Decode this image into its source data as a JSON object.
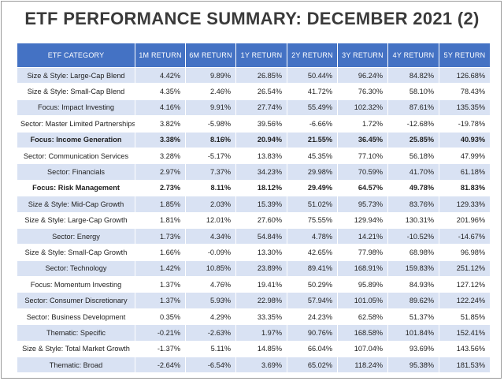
{
  "title": "ETF PERFORMANCE SUMMARY: DECEMBER 2021 (2)",
  "columns": [
    "ETF CATEGORY",
    "1M RETURN",
    "6M RETURN",
    "1Y RETURN",
    "2Y RETURN",
    "3Y RETURN",
    "4Y RETURN",
    "5Y RETURN"
  ],
  "rows": [
    {
      "category": "Size & Style: Large-Cap Blend",
      "values": [
        "4.42%",
        "9.89%",
        "26.85%",
        "50.44%",
        "96.24%",
        "84.82%",
        "126.68%"
      ],
      "bold": false
    },
    {
      "category": "Size & Style: Small-Cap Blend",
      "values": [
        "4.35%",
        "2.46%",
        "26.54%",
        "41.72%",
        "76.30%",
        "58.10%",
        "78.43%"
      ],
      "bold": false
    },
    {
      "category": "Focus: Impact Investing",
      "values": [
        "4.16%",
        "9.91%",
        "27.74%",
        "55.49%",
        "102.32%",
        "87.61%",
        "135.35%"
      ],
      "bold": false
    },
    {
      "category": "Sector: Master Limited Partnerships",
      "values": [
        "3.82%",
        "-5.98%",
        "39.56%",
        "-6.66%",
        "1.72%",
        "-12.68%",
        "-19.78%"
      ],
      "bold": false
    },
    {
      "category": "Focus: Income Generation",
      "values": [
        "3.38%",
        "8.16%",
        "20.94%",
        "21.55%",
        "36.45%",
        "25.85%",
        "40.93%"
      ],
      "bold": true
    },
    {
      "category": "Sector: Communication Services",
      "values": [
        "3.28%",
        "-5.17%",
        "13.83%",
        "45.35%",
        "77.10%",
        "56.18%",
        "47.99%"
      ],
      "bold": false
    },
    {
      "category": "Sector: Financials",
      "values": [
        "2.97%",
        "7.37%",
        "34.23%",
        "29.98%",
        "70.59%",
        "41.70%",
        "61.18%"
      ],
      "bold": false
    },
    {
      "category": "Focus: Risk Management",
      "values": [
        "2.73%",
        "8.11%",
        "18.12%",
        "29.49%",
        "64.57%",
        "49.78%",
        "81.83%"
      ],
      "bold": true
    },
    {
      "category": "Size & Style: Mid-Cap Growth",
      "values": [
        "1.85%",
        "2.03%",
        "15.39%",
        "51.02%",
        "95.73%",
        "83.76%",
        "129.33%"
      ],
      "bold": false
    },
    {
      "category": "Size & Style: Large-Cap Growth",
      "values": [
        "1.81%",
        "12.01%",
        "27.60%",
        "75.55%",
        "129.94%",
        "130.31%",
        "201.96%"
      ],
      "bold": false
    },
    {
      "category": "Sector: Energy",
      "values": [
        "1.73%",
        "4.34%",
        "54.84%",
        "4.78%",
        "14.21%",
        "-10.52%",
        "-14.67%"
      ],
      "bold": false
    },
    {
      "category": "Size & Style: Small-Cap Growth",
      "values": [
        "1.66%",
        "-0.09%",
        "13.30%",
        "42.65%",
        "77.98%",
        "68.98%",
        "96.98%"
      ],
      "bold": false
    },
    {
      "category": "Sector: Technology",
      "values": [
        "1.42%",
        "10.85%",
        "23.89%",
        "89.41%",
        "168.91%",
        "159.83%",
        "251.12%"
      ],
      "bold": false
    },
    {
      "category": "Focus: Momentum Investing",
      "values": [
        "1.37%",
        "4.76%",
        "19.41%",
        "50.29%",
        "95.89%",
        "84.93%",
        "127.12%"
      ],
      "bold": false
    },
    {
      "category": "Sector: Consumer Discretionary",
      "values": [
        "1.37%",
        "5.93%",
        "22.98%",
        "57.94%",
        "101.05%",
        "89.62%",
        "122.24%"
      ],
      "bold": false
    },
    {
      "category": "Sector: Business Development",
      "values": [
        "0.35%",
        "4.29%",
        "33.35%",
        "24.23%",
        "62.58%",
        "51.37%",
        "51.85%"
      ],
      "bold": false
    },
    {
      "category": "Thematic: Specific",
      "values": [
        "-0.21%",
        "-2.63%",
        "1.97%",
        "90.76%",
        "168.58%",
        "101.84%",
        "152.41%"
      ],
      "bold": false
    },
    {
      "category": "Size & Style: Total Market Growth",
      "values": [
        "-1.37%",
        "5.11%",
        "14.85%",
        "66.04%",
        "107.04%",
        "93.69%",
        "143.56%"
      ],
      "bold": false
    },
    {
      "category": "Thematic: Broad",
      "values": [
        "-2.64%",
        "-6.54%",
        "3.69%",
        "65.02%",
        "118.24%",
        "95.38%",
        "181.53%"
      ],
      "bold": false
    }
  ],
  "colors": {
    "header_bg": "#4472c4",
    "band_bg": "#d9e2f3",
    "title_text": "#3a3a3a"
  }
}
